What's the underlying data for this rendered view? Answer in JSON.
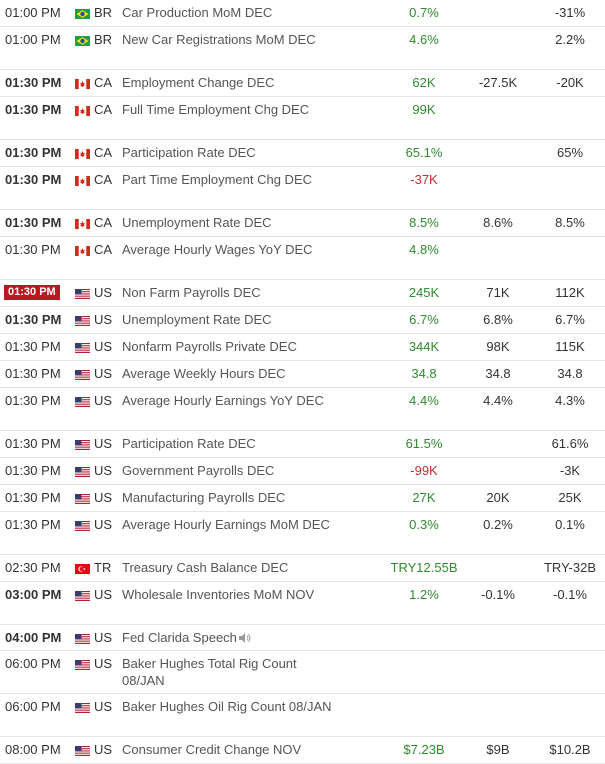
{
  "rows": [
    {
      "time": "01:00 PM",
      "time_style": "normal",
      "country": "BR",
      "event": "Car Production MoM DEC",
      "actual": "0.7%",
      "actual_color": "green",
      "forecast": "",
      "previous": "-31%"
    },
    {
      "time": "01:00 PM",
      "time_style": "normal",
      "country": "BR",
      "event": "New Car Registrations MoM DEC",
      "actual": "4.6%",
      "actual_color": "green",
      "forecast": "",
      "previous": "2.2%"
    },
    {
      "time": "01:30 PM",
      "time_style": "bold",
      "country": "CA",
      "event": "Employment Change DEC",
      "actual": "62K",
      "actual_color": "green",
      "forecast": "-27.5K",
      "previous": "-20K"
    },
    {
      "time": "01:30 PM",
      "time_style": "bold",
      "country": "CA",
      "event": "Full Time Employment Chg DEC",
      "actual": "99K",
      "actual_color": "green",
      "forecast": "",
      "previous": ""
    },
    {
      "time": "01:30 PM",
      "time_style": "bold",
      "country": "CA",
      "event": "Participation Rate DEC",
      "actual": "65.1%",
      "actual_color": "green",
      "forecast": "",
      "previous": "65%"
    },
    {
      "time": "01:30 PM",
      "time_style": "bold",
      "country": "CA",
      "event": "Part Time Employment Chg DEC",
      "actual": "-37K",
      "actual_color": "red",
      "forecast": "",
      "previous": ""
    },
    {
      "time": "01:30 PM",
      "time_style": "bold",
      "country": "CA",
      "event": "Unemployment Rate DEC",
      "actual": "8.5%",
      "actual_color": "green",
      "forecast": "8.6%",
      "previous": "8.5%"
    },
    {
      "time": "01:30 PM",
      "time_style": "normal",
      "country": "CA",
      "event": "Average Hourly Wages YoY DEC",
      "actual": "4.8%",
      "actual_color": "green",
      "forecast": "",
      "previous": ""
    },
    {
      "time": "01:30 PM",
      "time_style": "live",
      "country": "US",
      "event": "Non Farm Payrolls DEC",
      "actual": "245K",
      "actual_color": "green",
      "forecast": "71K",
      "previous": "112K"
    },
    {
      "time": "01:30 PM",
      "time_style": "bold",
      "country": "US",
      "event": "Unemployment Rate DEC",
      "actual": "6.7%",
      "actual_color": "green",
      "forecast": "6.8%",
      "previous": "6.7%"
    },
    {
      "time": "01:30 PM",
      "time_style": "normal",
      "country": "US",
      "event": "Nonfarm Payrolls Private DEC",
      "actual": "344K",
      "actual_color": "green",
      "forecast": "98K",
      "previous": "115K"
    },
    {
      "time": "01:30 PM",
      "time_style": "normal",
      "country": "US",
      "event": "Average Weekly Hours DEC",
      "actual": "34.8",
      "actual_color": "green",
      "forecast": "34.8",
      "previous": "34.8"
    },
    {
      "time": "01:30 PM",
      "time_style": "normal",
      "country": "US",
      "event": "Average Hourly Earnings YoY DEC",
      "actual": "4.4%",
      "actual_color": "green",
      "forecast": "4.4%",
      "previous": "4.3%"
    },
    {
      "time": "01:30 PM",
      "time_style": "normal",
      "country": "US",
      "event": "Participation Rate DEC",
      "actual": "61.5%",
      "actual_color": "green",
      "forecast": "",
      "previous": "61.6%"
    },
    {
      "time": "01:30 PM",
      "time_style": "normal",
      "country": "US",
      "event": "Government Payrolls DEC",
      "actual": "-99K",
      "actual_color": "red",
      "forecast": "",
      "previous": "-3K"
    },
    {
      "time": "01:30 PM",
      "time_style": "normal",
      "country": "US",
      "event": "Manufacturing Payrolls DEC",
      "actual": "27K",
      "actual_color": "green",
      "forecast": "20K",
      "previous": "25K"
    },
    {
      "time": "01:30 PM",
      "time_style": "normal",
      "country": "US",
      "event": "Average Hourly Earnings MoM DEC",
      "actual": "0.3%",
      "actual_color": "green",
      "forecast": "0.2%",
      "previous": "0.1%"
    },
    {
      "time": "02:30 PM",
      "time_style": "normal",
      "country": "TR",
      "event": "Treasury Cash Balance DEC",
      "actual": "TRY12.55B",
      "actual_color": "green",
      "forecast": "",
      "previous": "TRY-32B"
    },
    {
      "time": "03:00 PM",
      "time_style": "bold",
      "country": "US",
      "event": "Wholesale Inventories MoM NOV",
      "actual": "1.2%",
      "actual_color": "green",
      "forecast": "-0.1%",
      "previous": "-0.1%"
    },
    {
      "time": "04:00 PM",
      "time_style": "bold",
      "country": "US",
      "event": "Fed Clarida Speech",
      "actual": "",
      "actual_color": "green",
      "forecast": "",
      "previous": "",
      "speaker": true
    },
    {
      "time": "06:00 PM",
      "time_style": "normal",
      "country": "US",
      "event": "Baker Hughes Total Rig Count 08/JAN",
      "actual": "",
      "actual_color": "green",
      "forecast": "",
      "previous": ""
    },
    {
      "time": "06:00 PM",
      "time_style": "normal",
      "country": "US",
      "event": "Baker Hughes Oil Rig Count 08/JAN",
      "actual": "",
      "actual_color": "green",
      "forecast": "",
      "previous": ""
    },
    {
      "time": "08:00 PM",
      "time_style": "normal",
      "country": "US",
      "event": "Consumer Credit Change NOV",
      "actual": "$7.23B",
      "actual_color": "green",
      "forecast": "$9B",
      "previous": "$10.2B"
    }
  ],
  "flags": {
    "BR": "brazil-flag-icon",
    "CA": "canada-flag-icon",
    "US": "usa-flag-icon",
    "TR": "turkey-flag-icon"
  },
  "colors": {
    "green": "#2e8b2e",
    "red": "#c62d2d",
    "live_time_bg": "#b8181f"
  }
}
